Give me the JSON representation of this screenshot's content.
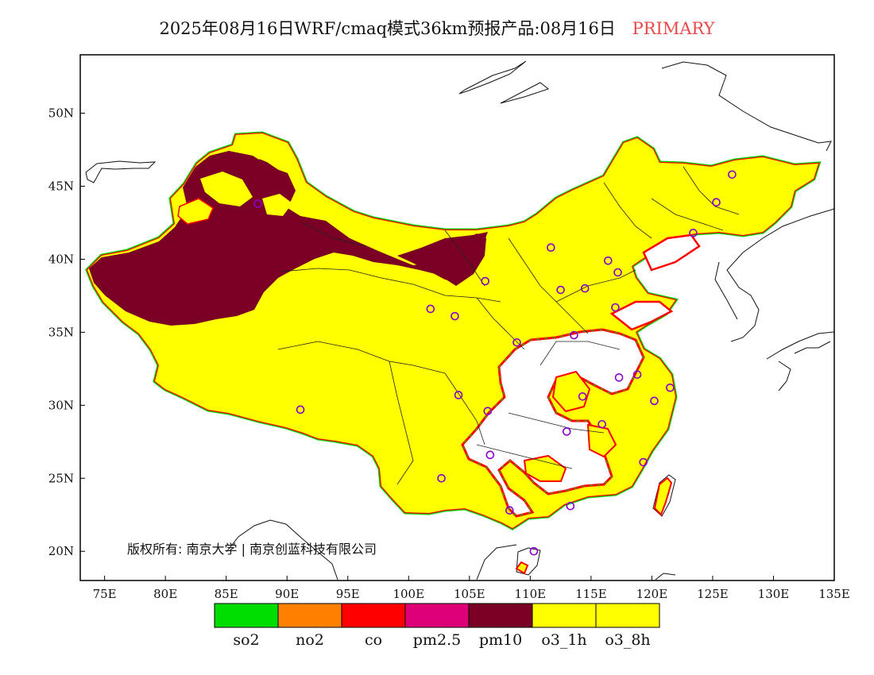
{
  "title": {
    "main": "2025年08月16日WRF/cmaq模式36km预报产品:08月16日",
    "tag": "PRIMARY",
    "tag_color": "#e84a4a"
  },
  "map": {
    "lon_range": [
      73,
      135
    ],
    "lat_range": [
      18,
      54
    ],
    "x_ticks": [
      "75E",
      "80E",
      "85E",
      "90E",
      "95E",
      "100E",
      "105E",
      "110E",
      "115E",
      "120E",
      "125E",
      "130E",
      "135E"
    ],
    "x_tick_values": [
      75,
      80,
      85,
      90,
      95,
      100,
      105,
      110,
      115,
      120,
      125,
      130,
      135
    ],
    "y_ticks": [
      "20N",
      "25N",
      "30N",
      "35N",
      "40N",
      "45N",
      "50N"
    ],
    "y_tick_values": [
      20,
      25,
      30,
      35,
      40,
      45,
      50
    ],
    "copyright": "版权所有: 南京大学 | 南京创蓝科技有限公司",
    "colors": {
      "o3": "#ffff00",
      "pm10": "#7b0026",
      "edge_red": "#ff0000",
      "edge_green": "#00dd00",
      "station": "#8800cc"
    },
    "stations": [
      {
        "lon": 87.6,
        "lat": 43.8
      },
      {
        "lon": 91.1,
        "lat": 29.7
      },
      {
        "lon": 101.8,
        "lat": 36.6
      },
      {
        "lon": 103.8,
        "lat": 36.1
      },
      {
        "lon": 106.3,
        "lat": 38.5
      },
      {
        "lon": 104.1,
        "lat": 30.7
      },
      {
        "lon": 106.5,
        "lat": 29.6
      },
      {
        "lon": 106.7,
        "lat": 26.6
      },
      {
        "lon": 108.9,
        "lat": 34.3
      },
      {
        "lon": 111.7,
        "lat": 40.8
      },
      {
        "lon": 112.5,
        "lat": 37.9
      },
      {
        "lon": 114.5,
        "lat": 38.0
      },
      {
        "lon": 116.4,
        "lat": 39.9
      },
      {
        "lon": 117.2,
        "lat": 39.1
      },
      {
        "lon": 113.6,
        "lat": 34.8
      },
      {
        "lon": 117.0,
        "lat": 36.7
      },
      {
        "lon": 114.3,
        "lat": 30.6
      },
      {
        "lon": 117.3,
        "lat": 31.9
      },
      {
        "lon": 118.8,
        "lat": 32.1
      },
      {
        "lon": 121.5,
        "lat": 31.2
      },
      {
        "lon": 120.2,
        "lat": 30.3
      },
      {
        "lon": 119.3,
        "lat": 26.1
      },
      {
        "lon": 115.9,
        "lat": 28.7
      },
      {
        "lon": 113.0,
        "lat": 28.2
      },
      {
        "lon": 113.3,
        "lat": 23.1
      },
      {
        "lon": 108.3,
        "lat": 22.8
      },
      {
        "lon": 110.3,
        "lat": 20.0
      },
      {
        "lon": 102.7,
        "lat": 25.0
      },
      {
        "lon": 125.3,
        "lat": 43.9
      },
      {
        "lon": 126.6,
        "lat": 45.8
      },
      {
        "lon": 123.4,
        "lat": 41.8
      }
    ]
  },
  "legend": {
    "items": [
      {
        "label": "so2",
        "color": "#00dd00"
      },
      {
        "label": "no2",
        "color": "#ff8000"
      },
      {
        "label": "co",
        "color": "#ff0000"
      },
      {
        "label": "pm2.5",
        "color": "#dd0077"
      },
      {
        "label": "pm10",
        "color": "#7b0026"
      },
      {
        "label": "o3_1h",
        "color": "#ffff00"
      },
      {
        "label": "o3_8h",
        "color": "#ffff00"
      }
    ]
  }
}
